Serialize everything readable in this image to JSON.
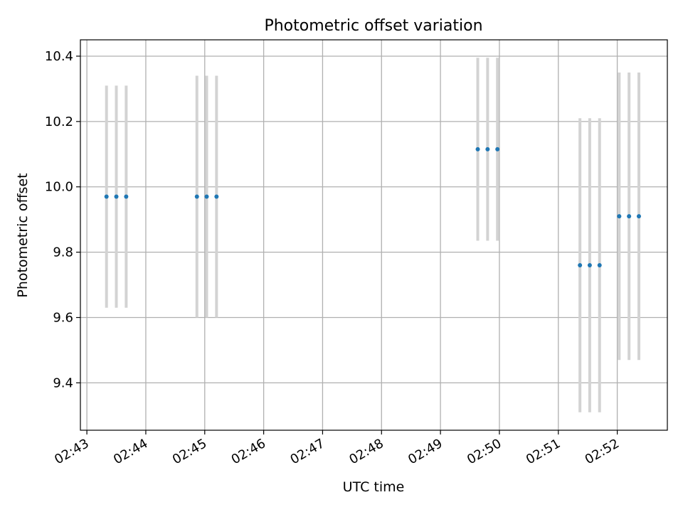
{
  "chart_data": {
    "type": "scatter",
    "title": "Photometric offset variation",
    "xlabel": "UTC time",
    "ylabel": "Photometric offset",
    "x_ticks": [
      "02:43",
      "02:44",
      "02:45",
      "02:46",
      "02:47",
      "02:48",
      "02:49",
      "02:50",
      "02:51",
      "02:52"
    ],
    "x_tick_minutes": [
      0,
      1,
      2,
      3,
      4,
      5,
      6,
      7,
      8,
      9
    ],
    "xlim_minutes": [
      -0.11,
      9.85
    ],
    "y_ticks": [
      "9.4",
      "9.6",
      "9.8",
      "10.0",
      "10.2",
      "10.4"
    ],
    "ylim": [
      9.255,
      10.45
    ],
    "grid": true,
    "series": [
      {
        "x": [
          "02:43:20",
          "02:43:30",
          "02:43:40",
          "02:44:52",
          "02:45:02",
          "02:45:12",
          "02:49:38",
          "02:49:48",
          "02:49:58",
          "02:51:22",
          "02:51:32",
          "02:51:42",
          "02:52:02",
          "02:52:12",
          "02:52:22"
        ],
        "x_minutes": [
          0.333,
          0.5,
          0.667,
          1.867,
          2.033,
          2.2,
          6.633,
          6.8,
          6.967,
          8.367,
          8.533,
          8.7,
          9.033,
          9.2,
          9.367
        ],
        "y": [
          9.97,
          9.97,
          9.97,
          9.97,
          9.97,
          9.97,
          10.115,
          10.115,
          10.115,
          9.76,
          9.76,
          9.76,
          9.91,
          9.91,
          9.91
        ],
        "yerr": [
          0.34,
          0.34,
          0.34,
          0.37,
          0.37,
          0.37,
          0.28,
          0.28,
          0.28,
          0.45,
          0.45,
          0.45,
          0.44,
          0.44,
          0.44
        ]
      }
    ],
    "colors": {
      "point": "#1f77b4",
      "errorbar": "#d3d3d3",
      "grid": "#b0b0b0"
    }
  }
}
